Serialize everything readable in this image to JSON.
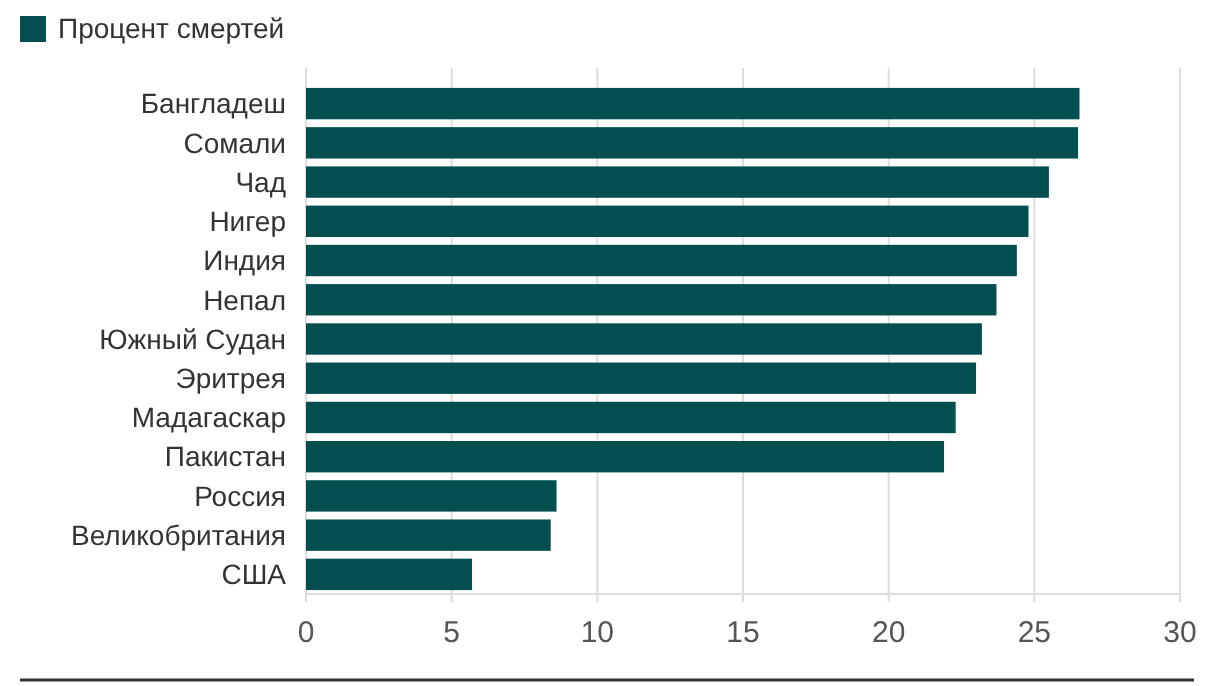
{
  "chart_data": {
    "type": "bar",
    "orientation": "horizontal",
    "categories": [
      "Бангладеш",
      "Сомали",
      "Чад",
      "Нигер",
      "Индия",
      "Непал",
      "Южный Судан",
      "Эритрея",
      "Мадагаскар",
      "Пакистан",
      "Россия",
      "Великобритания",
      "США"
    ],
    "series": [
      {
        "name": "Процент смертей",
        "color": "#034f4f",
        "values": [
          26.55,
          26.5,
          25.5,
          24.8,
          24.4,
          23.7,
          23.2,
          23.0,
          22.3,
          21.9,
          8.6,
          8.4,
          5.7
        ]
      }
    ],
    "xlim": [
      0,
      30
    ],
    "xticks": [
      0,
      5,
      10,
      15,
      20,
      25,
      30
    ],
    "grid": "x",
    "legend": "top left"
  }
}
